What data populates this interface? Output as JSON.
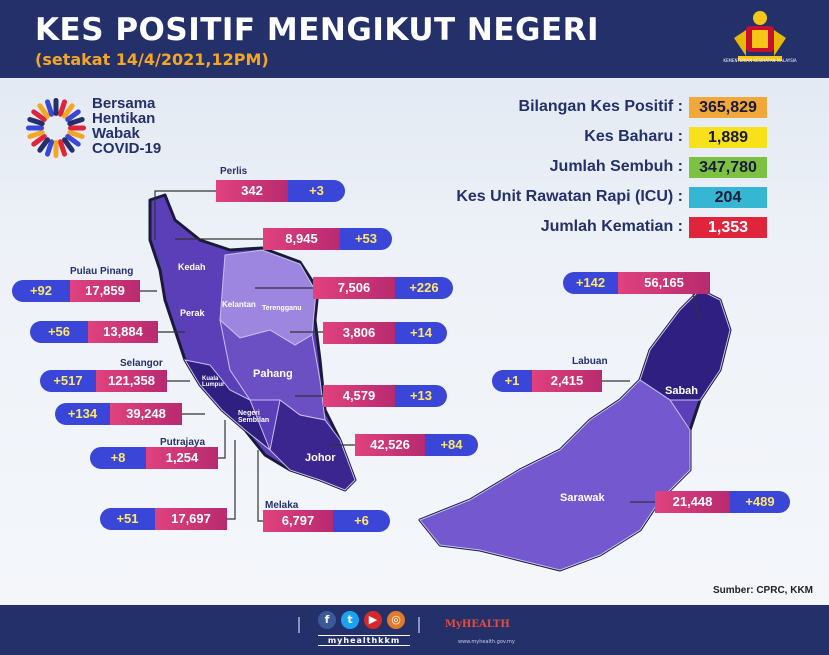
{
  "header": {
    "title": "KES POSITIF MENGIKUT NEGERI",
    "subtitle": "(setakat 14/4/2021,12PM)",
    "ministry": "KEMENTERIAN KESIHATAN MALAYSIA"
  },
  "campaign": {
    "line1": "Bersama",
    "line2": "Hentikan",
    "line3": "Wabak",
    "line4": "COVID-19"
  },
  "summary": [
    {
      "label": "Bilangan Kes Positif :",
      "value": "365,829",
      "color": "#f0a83a"
    },
    {
      "label": "Kes Baharu :",
      "value": "1,889",
      "color": "#f7e11a"
    },
    {
      "label": "Jumlah Sembuh :",
      "value": "347,780",
      "color": "#7cc142"
    },
    {
      "label": "Kes Unit Rawatan Rapi (ICU) :",
      "value": "204",
      "color": "#35b7d4"
    },
    {
      "label": "Jumlah Kematian :",
      "value": "1,353",
      "color": "#e0243c"
    }
  ],
  "states": {
    "perlis": {
      "name": "Perlis",
      "total": "342",
      "new": "+3"
    },
    "kedah": {
      "name": "Kedah",
      "total": "8,945",
      "new": "+53"
    },
    "pulau_pinang": {
      "name": "Pulau Pinang",
      "total": "17,859",
      "new": "+92"
    },
    "perak": {
      "name": "Perak",
      "total": "13,884",
      "new": "+56"
    },
    "selangor": {
      "name": "Selangor",
      "total": "121,358",
      "new": "+517"
    },
    "kuala_lumpur": {
      "name": "Kuala Lumpur",
      "total": "39,248",
      "new": "+134"
    },
    "putrajaya": {
      "name": "Putrajaya",
      "total": "1,254",
      "new": "+8"
    },
    "negeri_sembilan": {
      "name": "Negeri Sembilan",
      "total": "17,697",
      "new": "+51"
    },
    "melaka": {
      "name": "Melaka",
      "total": "6,797",
      "new": "+6"
    },
    "kelantan": {
      "name": "Kelantan",
      "total": "7,506",
      "new": "+226"
    },
    "terengganu": {
      "name": "Terengganu",
      "total": "3,806",
      "new": "+14"
    },
    "pahang": {
      "name": "Pahang",
      "total": "4,579",
      "new": "+13"
    },
    "johor": {
      "name": "Johor",
      "total": "42,526",
      "new": "+84"
    },
    "sabah": {
      "name": "Sabah",
      "total": "56,165",
      "new": "+142"
    },
    "labuan": {
      "name": "Labuan",
      "total": "2,415",
      "new": "+1"
    },
    "sarawak": {
      "name": "Sarawak",
      "total": "21,448",
      "new": "+489"
    }
  },
  "source": "Sumber: CPRC, KKM",
  "footer": {
    "handle": "myhealthkkm",
    "brand": "MyHEALTH",
    "url": "www.myhealth.gov.my",
    "social_icons": [
      "facebook-icon",
      "twitter-icon",
      "youtube-icon",
      "instagram-icon"
    ]
  }
}
